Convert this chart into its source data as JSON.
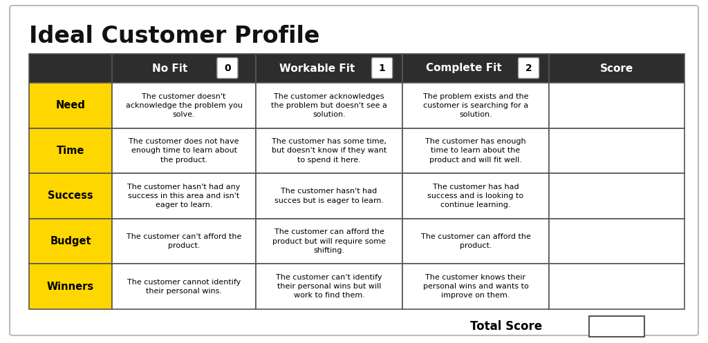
{
  "title": "Ideal Customer Profile",
  "background_color": "#FFFFFF",
  "header_bg": "#2d2d2d",
  "yellow_bg": "#FFD700",
  "rows": [
    {
      "label": "Need",
      "no_fit": "The customer doesn't\nacknowledge the problem you\nsolve.",
      "workable": "The customer acknowledges\nthe problem but doesn't see a\nsolution.",
      "complete": "The problem exists and the\ncustomer is searching for a\nsolution."
    },
    {
      "label": "Time",
      "no_fit": "The customer does not have\nenough time to learn about\nthe product.",
      "workable": "The customer has some time,\nbut doesn't know if they want\nto spend it here.",
      "complete": "The customer has enough\ntime to learn about the\nproduct and will fit well."
    },
    {
      "label": "Success",
      "no_fit": "The customer hasn't had any\nsuccess in this area and isn't\neager to learn.",
      "workable": "The customer hasn't had\nsucces but is eager to learn.",
      "complete": "The customer has had\nsuccess and is looking to\ncontinue learning."
    },
    {
      "label": "Budget",
      "no_fit": "The customer can't afford the\nproduct.",
      "workable": "The customer can afford the\nproduct but will require some\nshifting.",
      "complete": "The customer can afford the\nproduct."
    },
    {
      "label": "Winners",
      "no_fit": "The customer cannot identify\ntheir personal wins.",
      "workable": "The customer can't identify\ntheir personal wins but will\nwork to find them.",
      "complete": "The customer knows their\npersonal wins and wants to\nimprove on them."
    }
  ],
  "total_score_label": "Total Score"
}
